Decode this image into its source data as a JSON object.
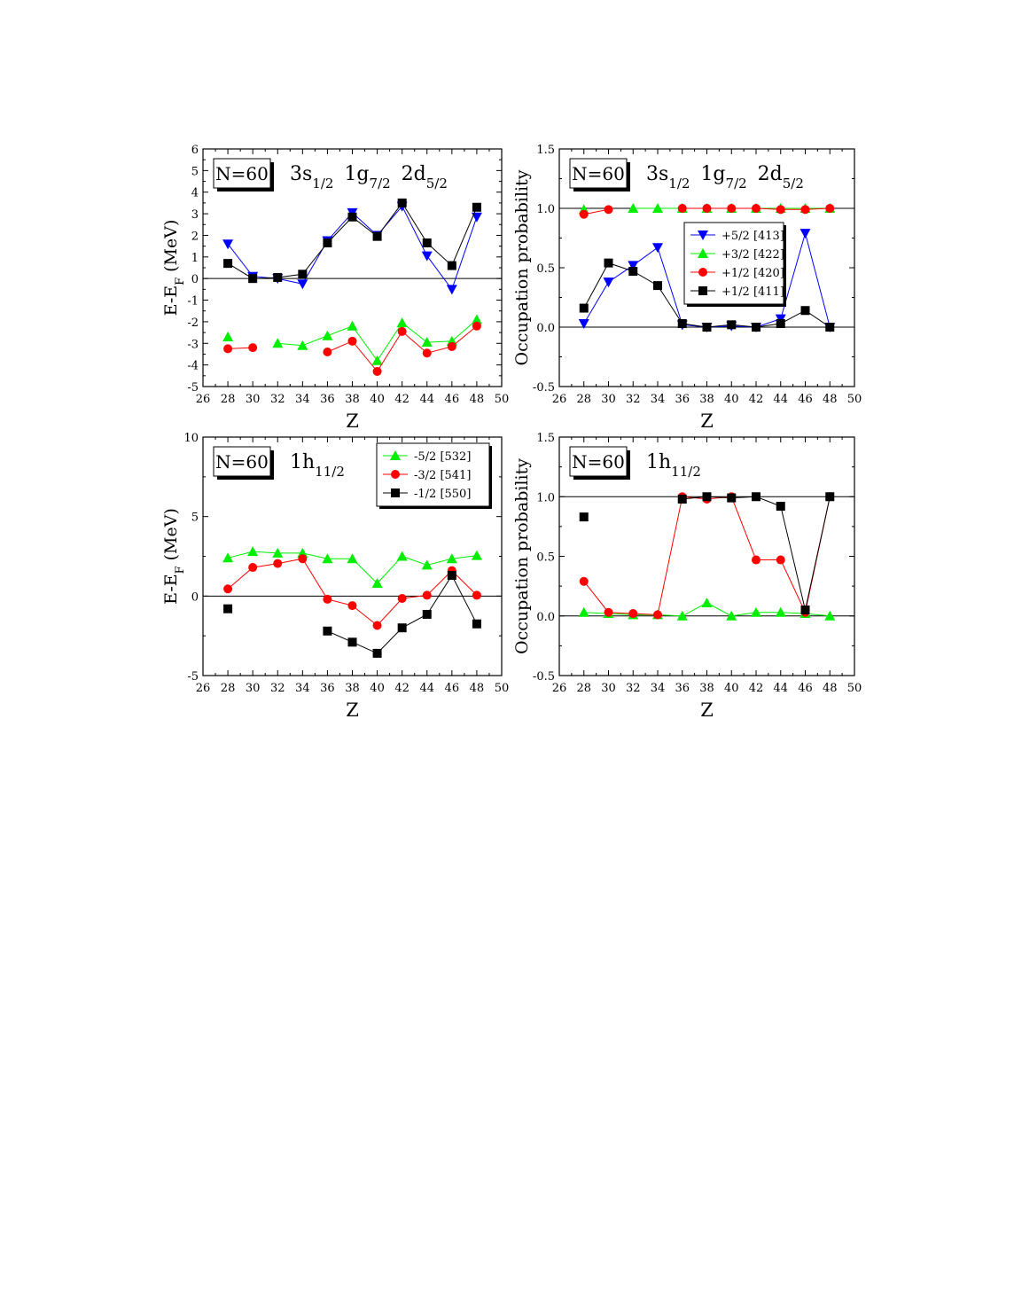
{
  "chart_data": [
    {
      "type": "line",
      "panel": "top-left",
      "box_label": "N=60",
      "orbitals": [
        [
          "3s",
          "1/2"
        ],
        [
          "1g",
          "7/2"
        ],
        [
          "2d",
          "5/2"
        ]
      ],
      "xlabel": "Z",
      "ylabel_main": "E-E",
      "ylabel_sub": "F",
      "ylabel_unit": "(MeV)",
      "xlim": [
        26,
        50
      ],
      "ylim": [
        -5,
        6
      ],
      "x_ticks": [
        26,
        28,
        30,
        32,
        34,
        36,
        38,
        40,
        42,
        44,
        46,
        48,
        50
      ],
      "y_ticks": [
        -5,
        -4,
        -3,
        -2,
        -1,
        0,
        1,
        2,
        3,
        4,
        5,
        6
      ],
      "y_tick_labels": [
        "-5",
        "-4",
        "-3",
        "-2",
        "-1",
        "0",
        "1",
        "2",
        "3",
        "4",
        "5",
        "6"
      ],
      "hline": 0,
      "legend": null,
      "x": [
        28,
        30,
        32,
        34,
        36,
        38,
        40,
        42,
        44,
        46,
        48
      ],
      "series": [
        {
          "name": "+5/2 [413]",
          "color": "#0000ff",
          "marker": "triangle-down",
          "values": [
            1.6,
            0.1,
            0.0,
            -0.25,
            1.75,
            3.05,
            2.0,
            3.35,
            1.05,
            -0.5,
            2.85
          ]
        },
        {
          "name": "+1/2 [411]",
          "color": "#000000",
          "marker": "square",
          "values": [
            0.7,
            0.0,
            0.05,
            0.2,
            1.65,
            2.85,
            1.95,
            3.5,
            1.65,
            0.6,
            3.3
          ]
        },
        {
          "name": "+3/2 [422]",
          "color": "#00ee00",
          "marker": "triangle-up",
          "values": [
            -2.7,
            null,
            -3.0,
            -3.1,
            -2.65,
            -2.2,
            -3.8,
            -2.05,
            -2.95,
            -2.9,
            -1.9
          ]
        },
        {
          "name": "+1/2 [420]",
          "color": "#ff0000",
          "marker": "circle",
          "values": [
            -3.25,
            -3.2,
            null,
            null,
            -3.4,
            -2.9,
            -4.3,
            -2.45,
            -3.45,
            -3.15,
            -2.2
          ]
        }
      ]
    },
    {
      "type": "line",
      "panel": "top-right",
      "box_label": "N=60",
      "orbitals": [
        [
          "3s",
          "1/2"
        ],
        [
          "1g",
          "7/2"
        ],
        [
          "2d",
          "5/2"
        ]
      ],
      "xlabel": "Z",
      "ylabel": "Occupation probability",
      "xlim": [
        26,
        50
      ],
      "ylim": [
        -0.5,
        1.5
      ],
      "x_ticks": [
        26,
        28,
        30,
        32,
        34,
        36,
        38,
        40,
        42,
        44,
        46,
        48,
        50
      ],
      "y_ticks": [
        -0.5,
        0.0,
        0.5,
        1.0,
        1.5
      ],
      "y_tick_labels": [
        "-0.5",
        "0.0",
        "0.5",
        "1.0",
        "1.5"
      ],
      "hlines": [
        0,
        1
      ],
      "legend": "center-right",
      "x": [
        28,
        30,
        32,
        34,
        36,
        38,
        40,
        42,
        44,
        46,
        48
      ],
      "series": [
        {
          "name": "+5/2 [413]",
          "color": "#0000ff",
          "marker": "triangle-down",
          "values": [
            0.03,
            0.38,
            0.52,
            0.67,
            0.02,
            0.0,
            0.01,
            0.0,
            0.07,
            0.79,
            0.0
          ]
        },
        {
          "name": "+3/2 [422]",
          "color": "#00ee00",
          "marker": "triangle-up",
          "values": [
            0.99,
            null,
            1.0,
            1.0,
            1.0,
            1.0,
            1.0,
            1.0,
            1.0,
            1.0,
            1.0
          ]
        },
        {
          "name": "+1/2 [420]",
          "color": "#ff0000",
          "marker": "circle",
          "values": [
            0.95,
            0.99,
            null,
            null,
            1.0,
            1.0,
            1.0,
            1.0,
            0.99,
            0.99,
            1.0
          ]
        },
        {
          "name": "+1/2 [411]",
          "color": "#000000",
          "marker": "square",
          "values": [
            0.16,
            0.54,
            0.47,
            0.35,
            0.03,
            0.0,
            0.02,
            0.0,
            0.03,
            0.14,
            0.0
          ]
        }
      ]
    },
    {
      "type": "line",
      "panel": "bottom-left",
      "box_label": "N=60",
      "orbitals": [
        [
          "1h",
          "11/2"
        ]
      ],
      "xlabel": "Z",
      "ylabel_main": "E-E",
      "ylabel_sub": "F",
      "ylabel_unit": "(MeV)",
      "xlim": [
        26,
        50
      ],
      "ylim": [
        -5,
        10
      ],
      "x_ticks": [
        26,
        28,
        30,
        32,
        34,
        36,
        38,
        40,
        42,
        44,
        46,
        48,
        50
      ],
      "y_ticks": [
        -5,
        0,
        5,
        10
      ],
      "y_tick_labels": [
        "-5",
        "0",
        "5",
        "10"
      ],
      "hline": 0,
      "legend": "top-right",
      "x": [
        28,
        30,
        32,
        34,
        36,
        38,
        40,
        42,
        44,
        46,
        48
      ],
      "series": [
        {
          "name": "-5/2 [532]",
          "color": "#00ee00",
          "marker": "triangle-up",
          "values": [
            2.4,
            2.8,
            2.7,
            2.7,
            2.35,
            2.35,
            0.8,
            2.5,
            1.95,
            2.35,
            2.55
          ]
        },
        {
          "name": "-3/2 [541]",
          "color": "#ff0000",
          "marker": "circle",
          "values": [
            0.45,
            1.8,
            2.05,
            2.35,
            -0.2,
            -0.6,
            -1.85,
            -0.15,
            0.05,
            1.6,
            0.05
          ]
        },
        {
          "name": "-1/2 [550]",
          "color": "#000000",
          "marker": "square",
          "values": [
            -0.8,
            null,
            null,
            null,
            -2.2,
            -2.9,
            -3.6,
            -2.0,
            -1.15,
            1.3,
            -1.75
          ]
        }
      ]
    },
    {
      "type": "line",
      "panel": "bottom-right",
      "box_label": "N=60",
      "orbitals": [
        [
          "1h",
          "11/2"
        ]
      ],
      "xlabel": "Z",
      "ylabel": "Occupation probability",
      "xlim": [
        26,
        50
      ],
      "ylim": [
        -0.5,
        1.5
      ],
      "x_ticks": [
        26,
        28,
        30,
        32,
        34,
        36,
        38,
        40,
        42,
        44,
        46,
        48,
        50
      ],
      "y_ticks": [
        -0.5,
        0.0,
        0.5,
        1.0,
        1.5
      ],
      "y_tick_labels": [
        "-0.5",
        "0.0",
        "0.5",
        "1.0",
        "1.5"
      ],
      "hlines": [
        0,
        1
      ],
      "legend": null,
      "x": [
        28,
        30,
        32,
        34,
        36,
        38,
        40,
        42,
        44,
        46,
        48
      ],
      "series": [
        {
          "name": "-5/2 [532]",
          "color": "#00ee00",
          "marker": "triangle-up",
          "values": [
            0.03,
            0.02,
            0.01,
            0.01,
            0.0,
            0.11,
            0.0,
            0.03,
            0.03,
            0.02,
            0.0
          ]
        },
        {
          "name": "-3/2 [541]",
          "color": "#ff0000",
          "marker": "circle",
          "values": [
            0.29,
            0.03,
            0.02,
            0.01,
            1.0,
            0.98,
            1.0,
            0.47,
            0.47,
            0.03,
            1.0
          ]
        },
        {
          "name": "-1/2 [550]",
          "color": "#000000",
          "marker": "square",
          "values": [
            0.83,
            null,
            null,
            null,
            0.98,
            1.0,
            0.99,
            1.0,
            0.92,
            0.05,
            1.0
          ]
        }
      ]
    }
  ]
}
